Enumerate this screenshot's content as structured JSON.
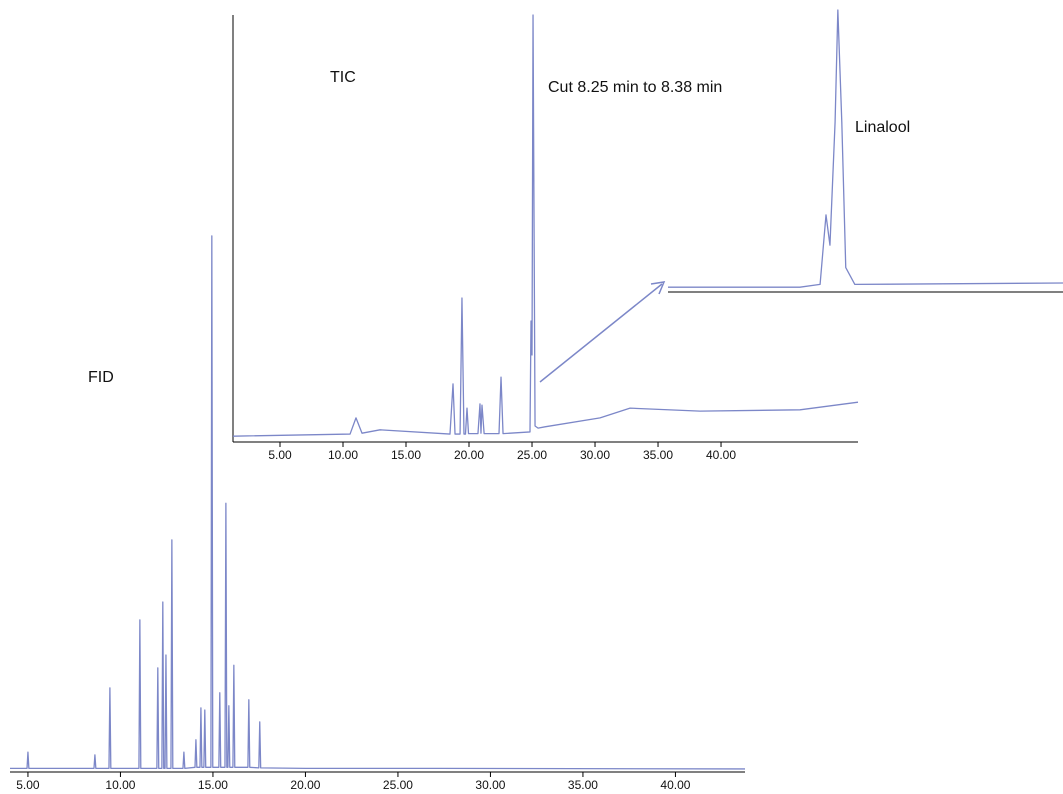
{
  "chart_data": [
    {
      "type": "line",
      "label": "FID",
      "color": "#7c87c8",
      "x": [
        4.03,
        4.95,
        5.0,
        5.05,
        8.57,
        8.62,
        8.67,
        9.38,
        9.43,
        9.48,
        11.0,
        11.05,
        11.1,
        11.97,
        12.02,
        12.07,
        12.24,
        12.29,
        12.34,
        12.41,
        12.46,
        12.51,
        12.73,
        12.78,
        12.83,
        13.38,
        13.43,
        13.48,
        14.03,
        14.08,
        14.13,
        14.3,
        14.35,
        14.4,
        14.51,
        14.56,
        14.61,
        14.89,
        14.94,
        14.99,
        15.32,
        15.37,
        15.42,
        15.65,
        15.7,
        15.75,
        15.81,
        15.86,
        15.91,
        16.08,
        16.13,
        16.18,
        16.89,
        16.94,
        16.99,
        17.48,
        17.53,
        17.58,
        20,
        27.2,
        43.76
      ],
      "y": [
        0.3,
        0.3,
        3.3,
        0.3,
        0.3,
        2.8,
        0.3,
        0.3,
        15.2,
        0.3,
        0.3,
        27.8,
        0.3,
        0.3,
        18.9,
        0.3,
        0.3,
        31.1,
        0.3,
        0.3,
        21.3,
        0.3,
        0.3,
        42.6,
        0.3,
        0.3,
        3.3,
        0.3,
        0.5,
        5.6,
        0.5,
        0.5,
        11.5,
        0.5,
        0.5,
        11.1,
        0.5,
        0.5,
        98.9,
        0.5,
        0.5,
        14.3,
        0.5,
        0.5,
        49.4,
        0.5,
        0.5,
        11.9,
        0.5,
        0.5,
        19.4,
        0.5,
        0.5,
        13,
        0.5,
        0.4,
        8.9,
        0.4,
        0.3,
        0.3,
        0.2
      ],
      "xlim": [
        4.03,
        43.76
      ],
      "ylim": [
        0,
        100
      ],
      "xticks": [
        {
          "value": 5,
          "label": "5.00"
        },
        {
          "value": 10,
          "label": "10.00"
        },
        {
          "value": 15,
          "label": "15.00"
        },
        {
          "value": 20,
          "label": "20.00"
        },
        {
          "value": 25,
          "label": "25.00"
        },
        {
          "value": 30,
          "label": "30.00"
        },
        {
          "value": 35,
          "label": "35.00"
        },
        {
          "value": 40,
          "label": "40.00"
        }
      ]
    },
    {
      "type": "line",
      "label": "TIC",
      "annotation": "Cut 8.25 min to 8.38 min",
      "color": "#7c87c8",
      "x": [
        1.27,
        10.56,
        11.03,
        11.51,
        12.94,
        18.49,
        18.73,
        18.89,
        19.29,
        19.44,
        19.6,
        19.72,
        19.84,
        19.96,
        20.71,
        20.87,
        20.95,
        21.03,
        21.2,
        22.38,
        22.54,
        22.7,
        24.84,
        24.92,
        25.0,
        25.08,
        25.24,
        25.48,
        26.03,
        30.4,
        32.78,
        38.33,
        46.27,
        50.87
      ],
      "y": [
        0.9,
        1.4,
        5.2,
        1.6,
        2.4,
        1.4,
        13.2,
        1.4,
        1.4,
        33.4,
        1.4,
        1.4,
        7.5,
        1.5,
        1.5,
        8.5,
        1.6,
        8.2,
        1.5,
        1.5,
        14.8,
        1.5,
        1.9,
        28,
        20,
        100,
        3.3,
        2.8,
        3.1,
        5.2,
        7.5,
        6.8,
        7.1,
        8.9
      ],
      "xlim": [
        1.27,
        50.87
      ],
      "ylim": [
        0,
        100
      ],
      "xticks": [
        {
          "value": 5,
          "label": "5.00"
        },
        {
          "value": 10,
          "label": "10.00"
        },
        {
          "value": 15,
          "label": "15.00"
        },
        {
          "value": 20,
          "label": "20.00"
        },
        {
          "value": 25,
          "label": "25.00"
        },
        {
          "value": 30,
          "label": "30.00"
        },
        {
          "value": 35,
          "label": "35.00"
        },
        {
          "value": 40,
          "label": "40.00"
        }
      ]
    },
    {
      "type": "line",
      "label": "Linalool",
      "color": "#7c87c8",
      "x": [
        0,
        33.4,
        38.5,
        40,
        41,
        42.3,
        43,
        44,
        45,
        47.3,
        100
      ],
      "y": [
        1,
        1,
        2,
        26.8,
        16,
        60,
        100,
        60,
        8,
        2,
        2.5
      ],
      "xlim": [
        0,
        100
      ],
      "ylim": [
        0,
        100
      ]
    }
  ]
}
